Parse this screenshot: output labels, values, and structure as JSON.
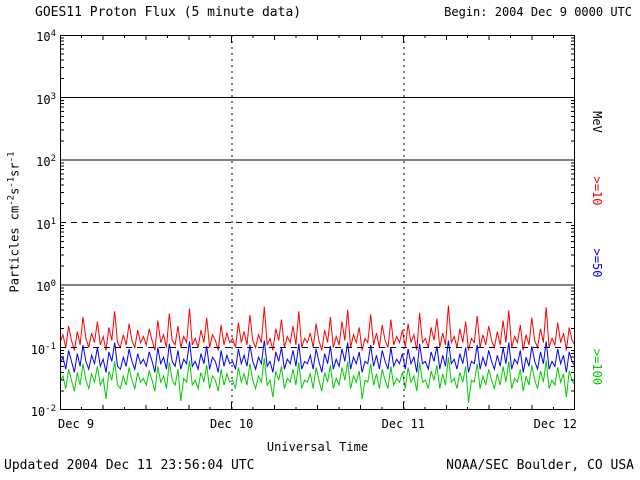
{
  "header": {
    "title": "GOES11 Proton Flux (5 minute data)",
    "begin_label": "Begin: 2004 Dec 9 0000 UTC"
  },
  "footer": {
    "updated": "Updated 2004 Dec 11 23:56:04 UTC",
    "credit": "NOAA/SEC Boulder, CO USA"
  },
  "chart_data": {
    "type": "line",
    "title": "GOES11 Proton Flux (5 minute data)",
    "x_axis": {
      "label": "Universal Time",
      "tick_labels": [
        "Dec 9",
        "Dec 10",
        "Dec 11",
        "Dec 12"
      ],
      "start": "2004 Dec 9 0000 UTC",
      "end": "2004 Dec 12 0000 UTC",
      "range_days": 3
    },
    "y_axis": {
      "scale": "log10",
      "min": 0.01,
      "max": 10000,
      "tick_exponents": [
        4,
        3,
        2,
        1,
        0,
        -1,
        -2
      ],
      "label_segments": [
        {
          "t": "Particles cm"
        },
        {
          "t": "-2",
          "sup": true
        },
        {
          "t": "s"
        },
        {
          "t": "-1",
          "sup": true
        },
        {
          "t": "sr"
        },
        {
          "t": "-1",
          "sup": true
        }
      ]
    },
    "gridlines": {
      "solid_y": [
        1000,
        100,
        1
      ],
      "dashed_y": [
        10,
        0.1
      ],
      "vertical_dotted_at_days": [
        1,
        2
      ]
    },
    "right_labels": [
      {
        "text": "MeV",
        "color": "#000000"
      },
      {
        "text": ">=10",
        "color": "#ff0000"
      },
      {
        "text": ">=50",
        "color": "#0000ff"
      },
      {
        "text": ">=100",
        "color": "#00cc00"
      }
    ],
    "series": [
      {
        "name": ">=10",
        "full_name": ">=10 MeV protons",
        "color": "#ff0000",
        "approx_baseline": 0.13,
        "values": [
          0.12,
          0.16,
          0.1,
          0.22,
          0.13,
          0.09,
          0.18,
          0.11,
          0.31,
          0.14,
          0.1,
          0.17,
          0.12,
          0.26,
          0.11,
          0.15,
          0.09,
          0.21,
          0.13,
          0.38,
          0.12,
          0.1,
          0.16,
          0.11,
          0.24,
          0.13,
          0.1,
          0.19,
          0.12,
          0.15,
          0.11,
          0.2,
          0.13,
          0.09,
          0.27,
          0.12,
          0.16,
          0.1,
          0.35,
          0.13,
          0.11,
          0.22,
          0.1,
          0.15,
          0.12,
          0.42,
          0.11,
          0.14,
          0.1,
          0.19,
          0.12,
          0.3,
          0.1,
          0.16,
          0.13,
          0.09,
          0.23,
          0.11,
          0.17,
          0.12,
          0.14,
          0.1,
          0.25,
          0.12,
          0.18,
          0.11,
          0.33,
          0.13,
          0.1,
          0.16,
          0.12,
          0.45,
          0.11,
          0.14,
          0.09,
          0.2,
          0.13,
          0.28,
          0.1,
          0.15,
          0.12,
          0.22,
          0.11,
          0.38,
          0.1,
          0.14,
          0.12,
          0.17,
          0.1,
          0.24,
          0.13,
          0.09,
          0.19,
          0.12,
          0.31,
          0.1,
          0.15,
          0.11,
          0.26,
          0.13,
          0.4,
          0.1,
          0.16,
          0.12,
          0.21,
          0.09,
          0.14,
          0.12,
          0.34,
          0.11,
          0.17,
          0.1,
          0.23,
          0.13,
          0.1,
          0.28,
          0.11,
          0.15,
          0.12,
          0.19,
          0.1,
          0.24,
          0.12,
          0.16,
          0.09,
          0.36,
          0.12,
          0.14,
          0.1,
          0.21,
          0.13,
          0.29,
          0.1,
          0.17,
          0.11,
          0.47,
          0.12,
          0.15,
          0.1,
          0.2,
          0.12,
          0.26,
          0.09,
          0.14,
          0.12,
          0.32,
          0.1,
          0.16,
          0.11,
          0.22,
          0.13,
          0.1,
          0.18,
          0.11,
          0.27,
          0.12,
          0.39,
          0.1,
          0.15,
          0.12,
          0.23,
          0.09,
          0.16,
          0.11,
          0.3,
          0.13,
          0.1,
          0.2,
          0.12,
          0.44,
          0.1,
          0.14,
          0.11,
          0.25,
          0.12,
          0.17,
          0.09,
          0.21,
          0.13,
          0.11
        ]
      },
      {
        "name": ">=50",
        "full_name": ">=50 MeV protons",
        "color": "#0000ff",
        "approx_baseline": 0.06,
        "values": [
          0.055,
          0.07,
          0.045,
          0.09,
          0.06,
          0.04,
          0.08,
          0.05,
          0.11,
          0.06,
          0.045,
          0.075,
          0.055,
          0.1,
          0.05,
          0.065,
          0.04,
          0.085,
          0.06,
          0.12,
          0.05,
          0.045,
          0.07,
          0.05,
          0.095,
          0.06,
          0.045,
          0.08,
          0.055,
          0.065,
          0.05,
          0.085,
          0.06,
          0.04,
          0.1,
          0.055,
          0.07,
          0.045,
          0.115,
          0.06,
          0.05,
          0.09,
          0.045,
          0.065,
          0.055,
          0.125,
          0.05,
          0.06,
          0.045,
          0.08,
          0.055,
          0.105,
          0.045,
          0.07,
          0.06,
          0.04,
          0.09,
          0.05,
          0.075,
          0.055,
          0.06,
          0.045,
          0.095,
          0.055,
          0.075,
          0.05,
          0.11,
          0.06,
          0.045,
          0.07,
          0.055,
          0.13,
          0.05,
          0.06,
          0.04,
          0.085,
          0.06,
          0.1,
          0.045,
          0.065,
          0.055,
          0.09,
          0.05,
          0.115,
          0.045,
          0.06,
          0.055,
          0.075,
          0.045,
          0.095,
          0.06,
          0.04,
          0.08,
          0.055,
          0.105,
          0.045,
          0.065,
          0.05,
          0.095,
          0.06,
          0.12,
          0.045,
          0.07,
          0.055,
          0.085,
          0.04,
          0.06,
          0.055,
          0.11,
          0.05,
          0.075,
          0.045,
          0.09,
          0.06,
          0.045,
          0.1,
          0.05,
          0.065,
          0.055,
          0.08,
          0.045,
          0.095,
          0.055,
          0.07,
          0.04,
          0.115,
          0.055,
          0.06,
          0.045,
          0.085,
          0.06,
          0.105,
          0.045,
          0.075,
          0.05,
          0.13,
          0.055,
          0.065,
          0.045,
          0.08,
          0.055,
          0.1,
          0.04,
          0.06,
          0.055,
          0.11,
          0.045,
          0.07,
          0.05,
          0.09,
          0.06,
          0.045,
          0.075,
          0.05,
          0.1,
          0.055,
          0.12,
          0.045,
          0.065,
          0.055,
          0.09,
          0.04,
          0.07,
          0.05,
          0.105,
          0.06,
          0.045,
          0.085,
          0.055,
          0.125,
          0.045,
          0.06,
          0.05,
          0.095,
          0.055,
          0.075,
          0.04,
          0.085,
          0.06,
          0.05
        ]
      },
      {
        "name": ">=100",
        "full_name": ">=100 MeV protons",
        "color": "#00cc00",
        "approx_baseline": 0.03,
        "values": [
          0.028,
          0.035,
          0.022,
          0.045,
          0.03,
          0.02,
          0.04,
          0.025,
          0.055,
          0.03,
          0.022,
          0.038,
          0.028,
          0.05,
          0.025,
          0.032,
          0.015,
          0.042,
          0.03,
          0.06,
          0.025,
          0.022,
          0.035,
          0.025,
          0.048,
          0.03,
          0.022,
          0.04,
          0.028,
          0.032,
          0.025,
          0.042,
          0.03,
          0.02,
          0.05,
          0.028,
          0.035,
          0.022,
          0.058,
          0.03,
          0.025,
          0.045,
          0.014,
          0.032,
          0.028,
          0.062,
          0.025,
          0.03,
          0.022,
          0.04,
          0.028,
          0.052,
          0.022,
          0.035,
          0.03,
          0.02,
          0.045,
          0.025,
          0.038,
          0.028,
          0.03,
          0.022,
          0.048,
          0.028,
          0.038,
          0.025,
          0.055,
          0.03,
          0.022,
          0.035,
          0.028,
          0.068,
          0.025,
          0.03,
          0.016,
          0.042,
          0.03,
          0.05,
          0.022,
          0.032,
          0.028,
          0.045,
          0.025,
          0.058,
          0.022,
          0.03,
          0.028,
          0.038,
          0.022,
          0.048,
          0.03,
          0.02,
          0.04,
          0.028,
          0.052,
          0.022,
          0.032,
          0.025,
          0.048,
          0.03,
          0.06,
          0.022,
          0.035,
          0.028,
          0.042,
          0.015,
          0.03,
          0.028,
          0.055,
          0.025,
          0.038,
          0.022,
          0.045,
          0.03,
          0.022,
          0.05,
          0.025,
          0.032,
          0.028,
          0.04,
          0.022,
          0.048,
          0.028,
          0.035,
          0.02,
          0.058,
          0.028,
          0.03,
          0.022,
          0.042,
          0.03,
          0.052,
          0.022,
          0.038,
          0.025,
          0.07,
          0.028,
          0.032,
          0.022,
          0.04,
          0.028,
          0.05,
          0.013,
          0.03,
          0.028,
          0.055,
          0.022,
          0.035,
          0.025,
          0.045,
          0.03,
          0.022,
          0.038,
          0.025,
          0.05,
          0.028,
          0.06,
          0.022,
          0.032,
          0.028,
          0.045,
          0.02,
          0.035,
          0.025,
          0.052,
          0.03,
          0.022,
          0.042,
          0.028,
          0.062,
          0.022,
          0.03,
          0.025,
          0.048,
          0.028,
          0.038,
          0.016,
          0.042,
          0.03,
          0.025
        ]
      }
    ]
  }
}
